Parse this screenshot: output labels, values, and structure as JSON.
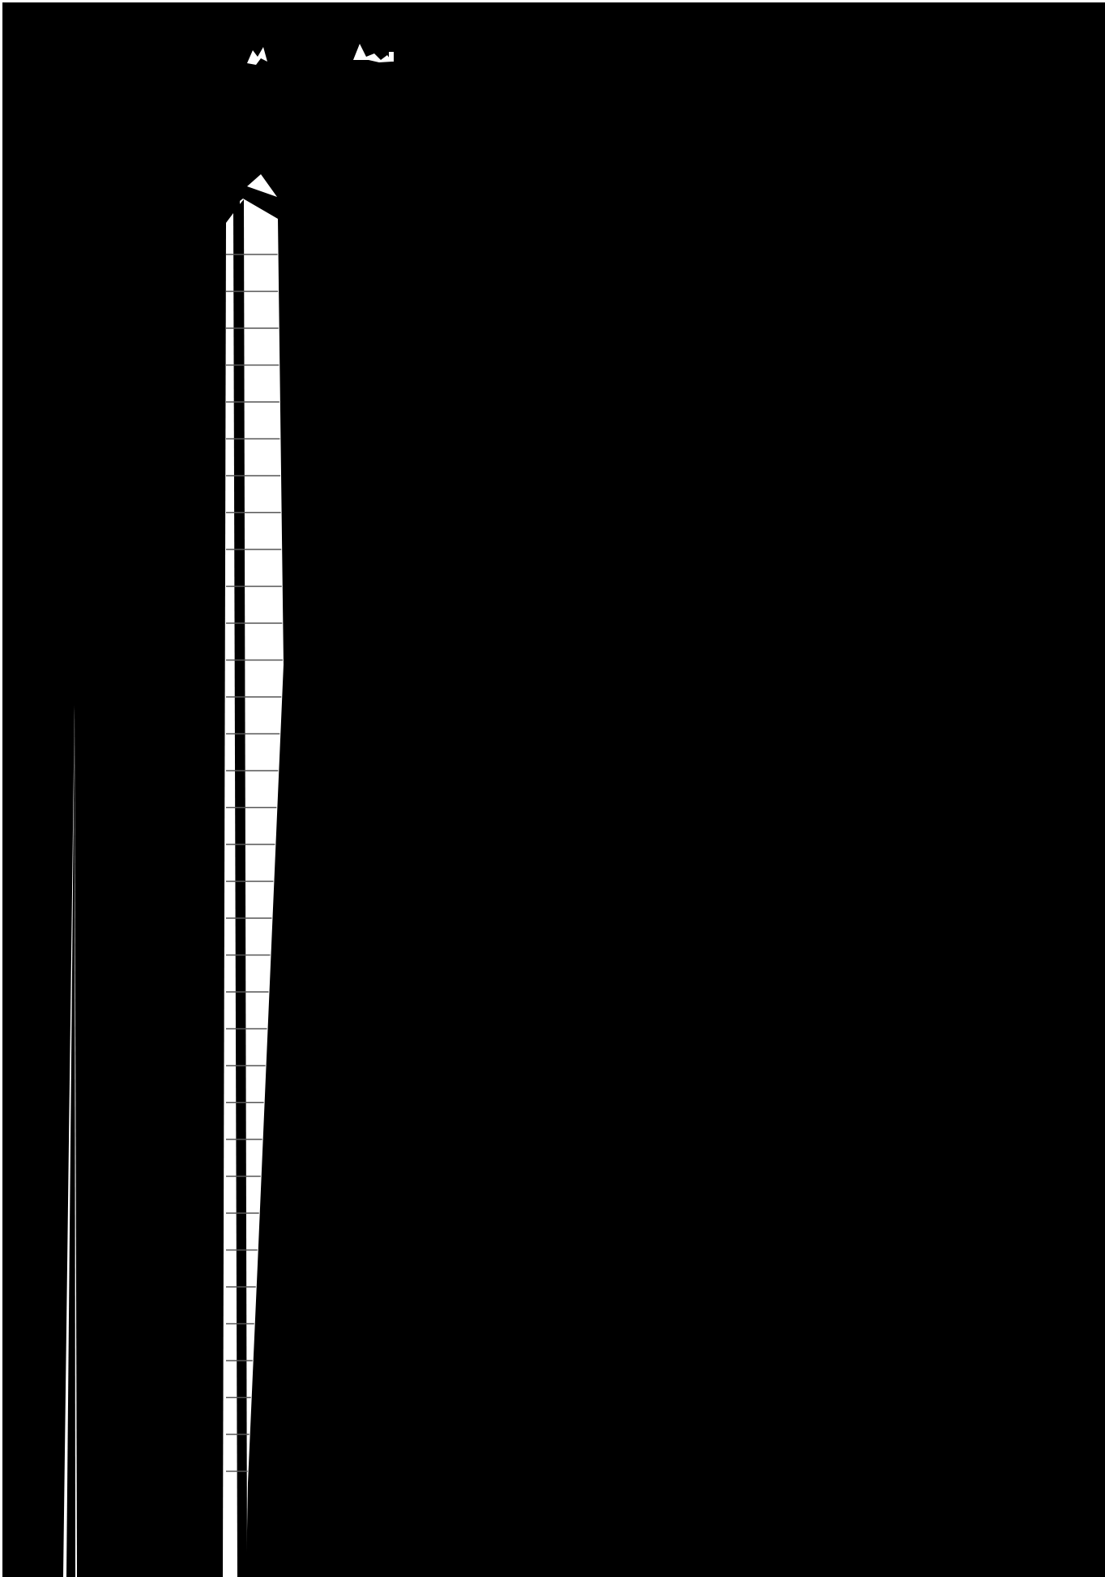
{
  "colors": {
    "background": "#000000",
    "frame_edge": "#ffffff",
    "ladder_fill": "#ffffff",
    "rung_line": "#555555",
    "left_sliver": "#ffffff"
  },
  "ladder": {
    "rung_count": 34
  }
}
